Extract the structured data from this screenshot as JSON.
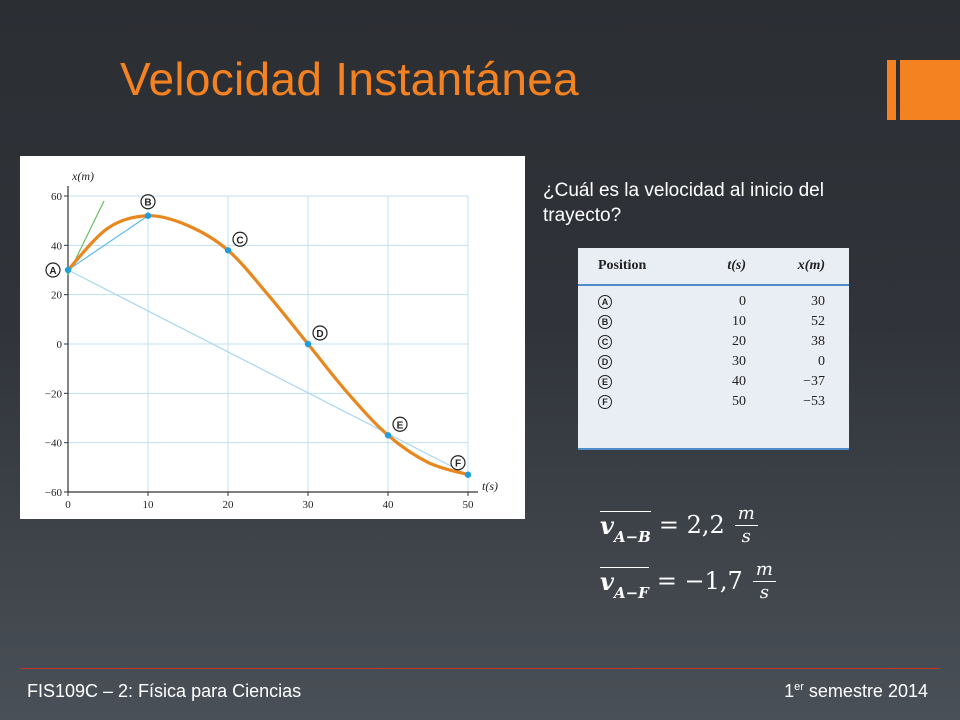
{
  "slide": {
    "title": "Velocidad Instantánea",
    "accent_color": "#f58220",
    "question": "¿Cuál es la velocidad al inicio del trayecto?"
  },
  "chart_data": {
    "type": "line",
    "title": "",
    "xlabel": "t(s)",
    "ylabel": "x(m)",
    "xlim": [
      0,
      50
    ],
    "ylim": [
      -60,
      60
    ],
    "x_ticks": [
      0,
      10,
      20,
      30,
      40,
      50
    ],
    "y_ticks": [
      60,
      40,
      20,
      0,
      -20,
      -40,
      -60
    ],
    "y_tick_labels": [
      "60",
      "40",
      "20",
      "0",
      "−20",
      "−40",
      "−60"
    ],
    "grid": true,
    "curve_color": "#e8871e",
    "points": [
      {
        "label": "A",
        "t": 0,
        "x": 30
      },
      {
        "label": "B",
        "t": 10,
        "x": 52
      },
      {
        "label": "C",
        "t": 20,
        "x": 38
      },
      {
        "label": "D",
        "t": 30,
        "x": 0
      },
      {
        "label": "E",
        "t": 40,
        "x": -37
      },
      {
        "label": "F",
        "t": 50,
        "x": -53
      }
    ],
    "curve": {
      "t": [
        0,
        5,
        10,
        15,
        20,
        25,
        30,
        35,
        40,
        45,
        50
      ],
      "x": [
        30,
        47,
        52,
        48,
        38,
        20,
        0,
        -20,
        -37,
        -48,
        -53
      ]
    },
    "secant_lines": [
      {
        "from": "A",
        "to": "B",
        "color": "#5bb8e8"
      },
      {
        "from": "A",
        "to": "F",
        "color": "#a9d6ef"
      }
    ],
    "tangent_line": {
      "t": [
        0,
        4.5
      ],
      "x": [
        28,
        58
      ],
      "color": "#6abf69"
    }
  },
  "table": {
    "headers": [
      "Position",
      "t(s)",
      "x(m)"
    ],
    "rows": [
      {
        "position": "A",
        "t": "0",
        "x": "30"
      },
      {
        "position": "B",
        "t": "10",
        "x": "52"
      },
      {
        "position": "C",
        "t": "20",
        "x": "38"
      },
      {
        "position": "D",
        "t": "30",
        "x": "0"
      },
      {
        "position": "E",
        "t": "40",
        "x": "−37"
      },
      {
        "position": "F",
        "t": "50",
        "x": "−53"
      }
    ]
  },
  "equations": [
    {
      "var": "v",
      "sub": "A−B",
      "value": "= 2,2",
      "unit_num": "m",
      "unit_den": "s"
    },
    {
      "var": "v",
      "sub": "A−F",
      "value": "= −1,7",
      "unit_num": "m",
      "unit_den": "s"
    }
  ],
  "footer": {
    "left": "FIS109C – 2: Física para Ciencias",
    "right_pre": "1",
    "right_sup": "er",
    "right_post": " semestre 2014"
  }
}
